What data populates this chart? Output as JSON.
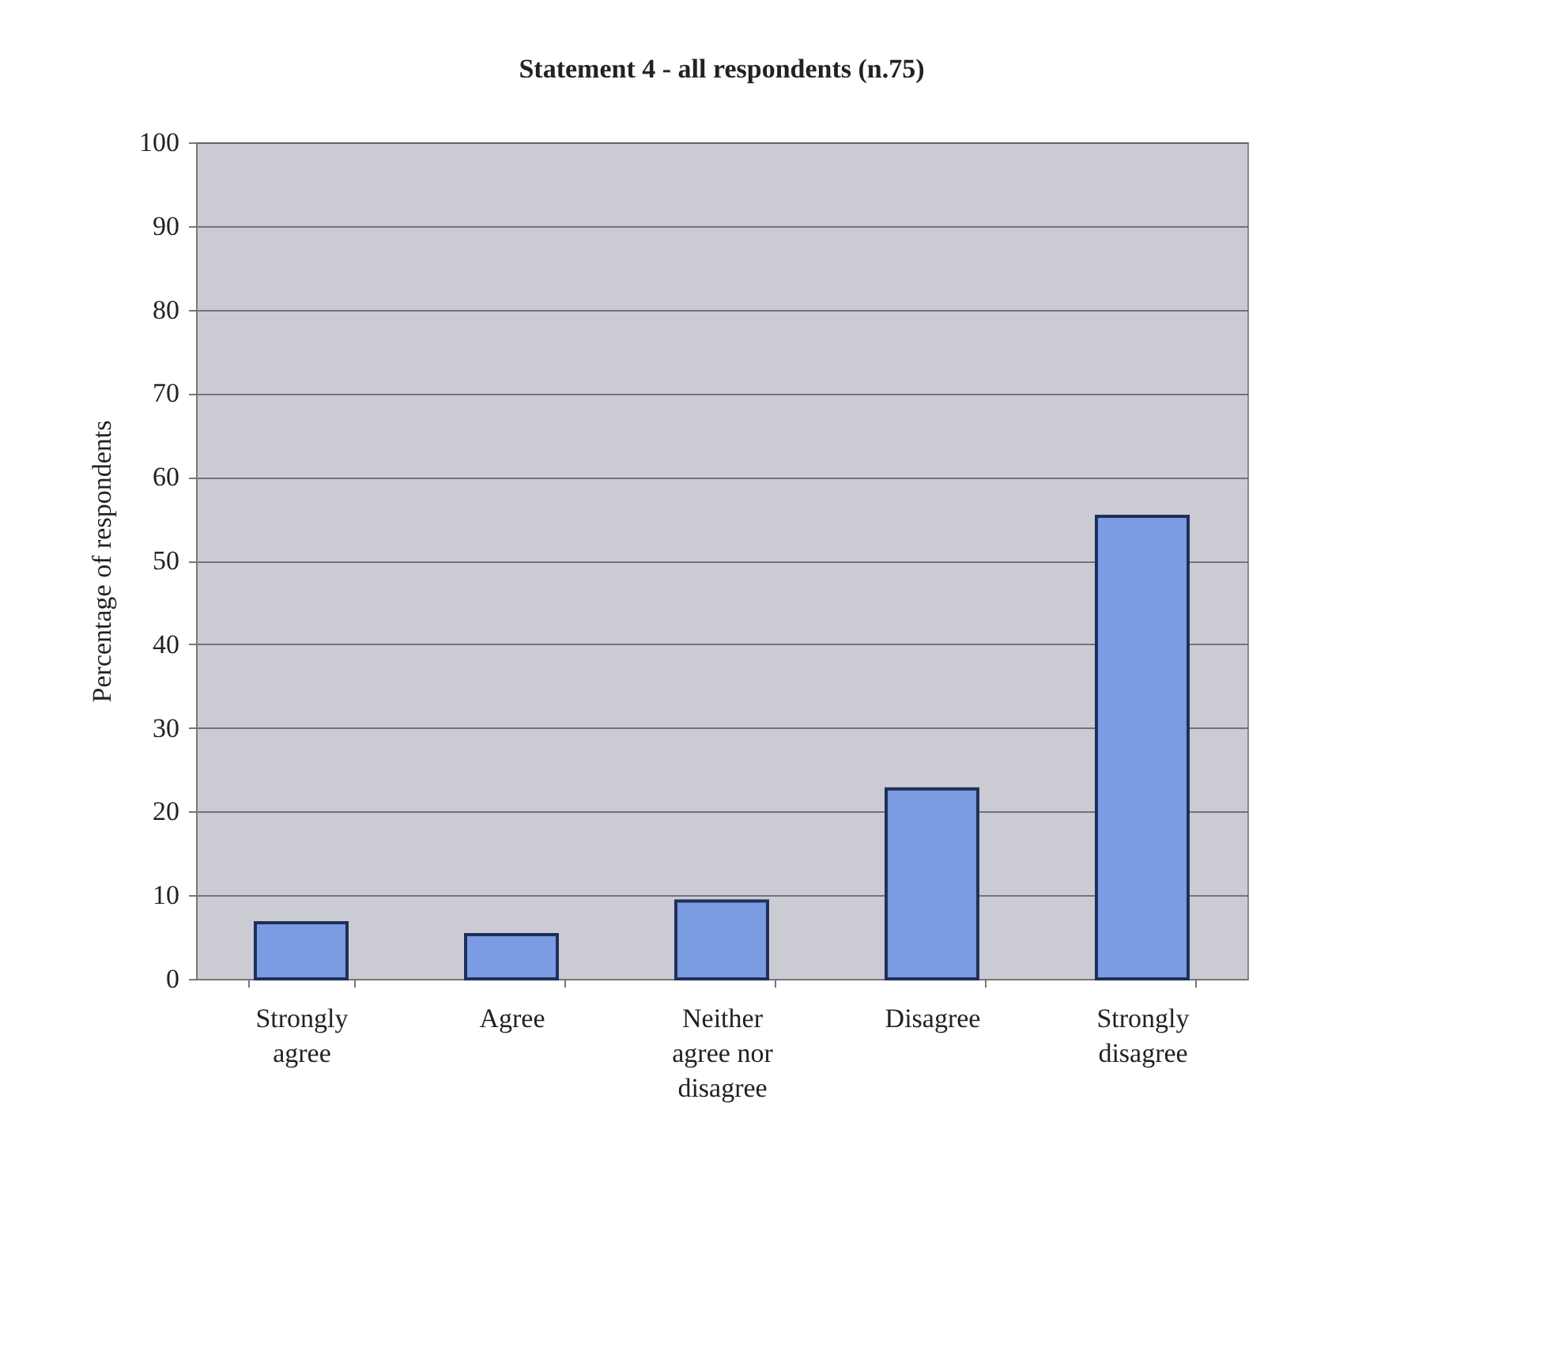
{
  "chart_data": {
    "type": "bar",
    "title": "Statement 4 - all respondents (n.75)",
    "ylabel": "Percentage of respondents",
    "categories": [
      "Strongly agree",
      "Agree",
      "Neither agree nor disagree",
      "Disagree",
      "Strongly disagree"
    ],
    "values": [
      6.7,
      5.3,
      9.3,
      22.7,
      55.3
    ],
    "color": "#7b9be2",
    "ylim": [
      0,
      100
    ],
    "yticks": [
      0,
      10,
      20,
      30,
      40,
      50,
      60,
      70,
      80,
      90,
      100
    ],
    "grid": "y"
  }
}
